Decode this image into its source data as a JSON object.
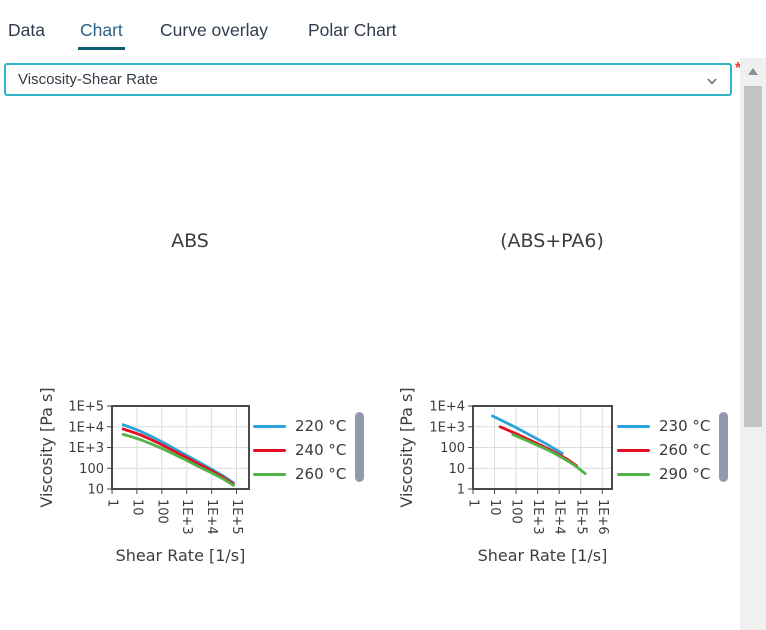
{
  "tabs": {
    "items": [
      {
        "label": "Data",
        "active": false
      },
      {
        "label": "Chart",
        "active": true
      },
      {
        "label": "Curve overlay",
        "active": false
      },
      {
        "label": "Polar Chart",
        "active": false
      }
    ]
  },
  "select": {
    "value": "Viscosity-Shear Rate",
    "required_marker": "*"
  },
  "colors": {
    "accent_teal": "#2fb4c7",
    "tab_active": "#2a6184",
    "tab_underline": "#0d5c74",
    "required_red": "#f03a2c",
    "legend_pill": "#9199ac",
    "plot_border": "#4a4a4a",
    "grid": "#dcdcdc"
  },
  "chart_data": [
    {
      "type": "line",
      "title": "ABS",
      "xlabel": "Shear Rate [1/s]",
      "ylabel": "Viscosity [Pa s]",
      "x_scale": "log",
      "y_scale": "log",
      "x_log_range": [
        0,
        5.5
      ],
      "y_log_range": [
        1,
        5
      ],
      "x_ticks": [
        {
          "label": "1",
          "value": 1
        },
        {
          "label": "10",
          "value": 10
        },
        {
          "label": "100",
          "value": 100
        },
        {
          "label": "1E+3",
          "value": 1000
        },
        {
          "label": "1E+4",
          "value": 10000
        },
        {
          "label": "1E+5",
          "value": 100000
        }
      ],
      "y_ticks": [
        {
          "label": "1E+5",
          "value": 100000
        },
        {
          "label": "1E+4",
          "value": 10000
        },
        {
          "label": "1E+3",
          "value": 1000
        },
        {
          "label": "100",
          "value": 100
        },
        {
          "label": "10",
          "value": 10
        }
      ],
      "legend_position": "right",
      "grid": true,
      "series": [
        {
          "name": "220 °C",
          "color": "#2aa3dc",
          "points": [
            [
              2.8,
              12500
            ],
            [
              6,
              9000
            ],
            [
              15,
              5800
            ],
            [
              40,
              3300
            ],
            [
              100,
              1900
            ],
            [
              300,
              900
            ],
            [
              1000,
              420
            ],
            [
              3000,
              200
            ],
            [
              10000,
              90
            ],
            [
              30000,
              42
            ],
            [
              75000,
              20
            ]
          ]
        },
        {
          "name": "240 °C",
          "color": "#e01020",
          "points": [
            [
              2.8,
              7800
            ],
            [
              6,
              5800
            ],
            [
              15,
              3900
            ],
            [
              40,
              2300
            ],
            [
              100,
              1350
            ],
            [
              300,
              680
            ],
            [
              1000,
              330
            ],
            [
              3000,
              160
            ],
            [
              10000,
              75
            ],
            [
              30000,
              36
            ],
            [
              75000,
              17.5
            ]
          ]
        },
        {
          "name": "260 °C",
          "color": "#52b348",
          "points": [
            [
              2.8,
              4300
            ],
            [
              6,
              3300
            ],
            [
              15,
              2300
            ],
            [
              40,
              1450
            ],
            [
              100,
              900
            ],
            [
              300,
              480
            ],
            [
              1000,
              240
            ],
            [
              3000,
              120
            ],
            [
              10000,
              60
            ],
            [
              30000,
              30
            ],
            [
              75000,
              15
            ]
          ]
        }
      ]
    },
    {
      "type": "line",
      "title": "(ABS+PA6)",
      "xlabel": "Shear Rate [1/s]",
      "ylabel": "Viscosity [Pa s]",
      "x_scale": "log",
      "y_scale": "log",
      "x_log_range": [
        0,
        6.45
      ],
      "y_log_range": [
        0,
        4
      ],
      "x_ticks": [
        {
          "label": "1",
          "value": 1
        },
        {
          "label": "10",
          "value": 10
        },
        {
          "label": "100",
          "value": 100
        },
        {
          "label": "1E+3",
          "value": 1000
        },
        {
          "label": "1E+4",
          "value": 10000
        },
        {
          "label": "1E+5",
          "value": 100000
        },
        {
          "label": "1E+6",
          "value": 1000000
        }
      ],
      "y_ticks": [
        {
          "label": "1E+4",
          "value": 10000
        },
        {
          "label": "1E+3",
          "value": 1000
        },
        {
          "label": "100",
          "value": 100
        },
        {
          "label": "10",
          "value": 10
        },
        {
          "label": "1",
          "value": 1
        }
      ],
      "legend_position": "right",
      "grid": true,
      "series": [
        {
          "name": "230 °C",
          "color": "#2aa3dc",
          "points": [
            [
              8,
              3300
            ],
            [
              15,
              2450
            ],
            [
              30,
              1700
            ],
            [
              70,
              1100
            ],
            [
              150,
              730
            ],
            [
              400,
              420
            ],
            [
              1000,
              250
            ],
            [
              2500,
              150
            ],
            [
              6000,
              88
            ],
            [
              14000,
              52
            ]
          ]
        },
        {
          "name": "260 °C",
          "color": "#e01020",
          "points": [
            [
              18,
              1000
            ],
            [
              40,
              700
            ],
            [
              100,
              460
            ],
            [
              250,
              300
            ],
            [
              600,
              195
            ],
            [
              1500,
              125
            ],
            [
              4000,
              76
            ],
            [
              10000,
              45
            ],
            [
              25000,
              26
            ],
            [
              65000,
              13
            ]
          ]
        },
        {
          "name": "290 °C",
          "color": "#52b348",
          "points": [
            [
              70,
              420
            ],
            [
              150,
              300
            ],
            [
              350,
              205
            ],
            [
              800,
              140
            ],
            [
              2000,
              92
            ],
            [
              5000,
              58
            ],
            [
              12000,
              35
            ],
            [
              30000,
              20
            ],
            [
              70000,
              11
            ],
            [
              160000,
              5.5
            ]
          ]
        }
      ]
    }
  ]
}
